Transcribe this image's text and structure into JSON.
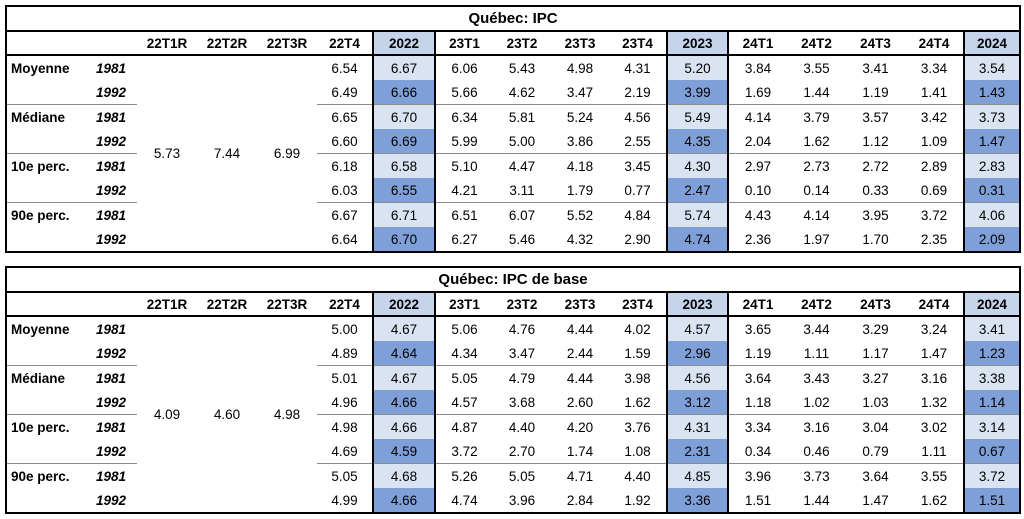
{
  "colors": {
    "border_black": "#000000",
    "group_separator": "#8c8c8c",
    "annual_header_bg": "#c5d4eb",
    "annual_1981_bg": "#dae3f1",
    "annual_1992_bg": "#7f9fd8"
  },
  "column_headers": [
    "",
    "",
    "22T1R",
    "22T2R",
    "22T3R",
    "22T4",
    "2022",
    "23T1",
    "23T2",
    "23T3",
    "23T4",
    "2023",
    "24T1",
    "24T2",
    "24T3",
    "24T4",
    "2024"
  ],
  "annual_columns": [
    "2022",
    "2023",
    "2024"
  ],
  "value_columns": [
    "22T4",
    "2022",
    "23T1",
    "23T2",
    "23T3",
    "23T4",
    "2023",
    "24T1",
    "24T2",
    "24T3",
    "24T4",
    "2024"
  ],
  "tables": [
    {
      "title": "Québec: IPC",
      "revised_estimates": {
        "22T1R": "5.73",
        "22T2R": "7.44",
        "22T3R": "6.99"
      },
      "groups": [
        {
          "label": "Moyenne",
          "rows": [
            {
              "year": "1981",
              "values": [
                "6.54",
                "6.67",
                "6.06",
                "5.43",
                "4.98",
                "4.31",
                "5.20",
                "3.84",
                "3.55",
                "3.41",
                "3.34",
                "3.54"
              ]
            },
            {
              "year": "1992",
              "values": [
                "6.49",
                "6.66",
                "5.66",
                "4.62",
                "3.47",
                "2.19",
                "3.99",
                "1.69",
                "1.44",
                "1.19",
                "1.41",
                "1.43"
              ]
            }
          ]
        },
        {
          "label": "Médiane",
          "rows": [
            {
              "year": "1981",
              "values": [
                "6.65",
                "6.70",
                "6.34",
                "5.81",
                "5.24",
                "4.56",
                "5.49",
                "4.14",
                "3.79",
                "3.57",
                "3.42",
                "3.73"
              ]
            },
            {
              "year": "1992",
              "values": [
                "6.60",
                "6.69",
                "5.99",
                "5.00",
                "3.86",
                "2.55",
                "4.35",
                "2.04",
                "1.62",
                "1.12",
                "1.09",
                "1.47"
              ]
            }
          ]
        },
        {
          "label": "10e perc.",
          "rows": [
            {
              "year": "1981",
              "values": [
                "6.18",
                "6.58",
                "5.10",
                "4.47",
                "4.18",
                "3.45",
                "4.30",
                "2.97",
                "2.73",
                "2.72",
                "2.89",
                "2.83"
              ]
            },
            {
              "year": "1992",
              "values": [
                "6.03",
                "6.55",
                "4.21",
                "3.11",
                "1.79",
                "0.77",
                "2.47",
                "0.10",
                "0.14",
                "0.33",
                "0.69",
                "0.31"
              ]
            }
          ]
        },
        {
          "label": "90e perc.",
          "rows": [
            {
              "year": "1981",
              "values": [
                "6.67",
                "6.71",
                "6.51",
                "6.07",
                "5.52",
                "4.84",
                "5.74",
                "4.43",
                "4.14",
                "3.95",
                "3.72",
                "4.06"
              ]
            },
            {
              "year": "1992",
              "values": [
                "6.64",
                "6.70",
                "6.27",
                "5.46",
                "4.32",
                "2.90",
                "4.74",
                "2.36",
                "1.97",
                "1.70",
                "2.35",
                "2.09"
              ]
            }
          ]
        }
      ]
    },
    {
      "title": "Québec: IPC de base",
      "revised_estimates": {
        "22T1R": "4.09",
        "22T2R": "4.60",
        "22T3R": "4.98"
      },
      "groups": [
        {
          "label": "Moyenne",
          "rows": [
            {
              "year": "1981",
              "values": [
                "5.00",
                "4.67",
                "5.06",
                "4.76",
                "4.44",
                "4.02",
                "4.57",
                "3.65",
                "3.44",
                "3.29",
                "3.24",
                "3.41"
              ]
            },
            {
              "year": "1992",
              "values": [
                "4.89",
                "4.64",
                "4.34",
                "3.47",
                "2.44",
                "1.59",
                "2.96",
                "1.19",
                "1.11",
                "1.17",
                "1.47",
                "1.23"
              ]
            }
          ]
        },
        {
          "label": "Médiane",
          "rows": [
            {
              "year": "1981",
              "values": [
                "5.01",
                "4.67",
                "5.05",
                "4.79",
                "4.44",
                "3.98",
                "4.56",
                "3.64",
                "3.43",
                "3.27",
                "3.16",
                "3.38"
              ]
            },
            {
              "year": "1992",
              "values": [
                "4.96",
                "4.66",
                "4.57",
                "3.68",
                "2.60",
                "1.62",
                "3.12",
                "1.18",
                "1.02",
                "1.03",
                "1.32",
                "1.14"
              ]
            }
          ]
        },
        {
          "label": "10e perc.",
          "rows": [
            {
              "year": "1981",
              "values": [
                "4.98",
                "4.66",
                "4.87",
                "4.40",
                "4.20",
                "3.76",
                "4.31",
                "3.34",
                "3.16",
                "3.04",
                "3.02",
                "3.14"
              ]
            },
            {
              "year": "1992",
              "values": [
                "4.69",
                "4.59",
                "3.72",
                "2.70",
                "1.74",
                "1.08",
                "2.31",
                "0.34",
                "0.46",
                "0.79",
                "1.11",
                "0.67"
              ]
            }
          ]
        },
        {
          "label": "90e perc.",
          "rows": [
            {
              "year": "1981",
              "values": [
                "5.05",
                "4.68",
                "5.26",
                "5.05",
                "4.71",
                "4.40",
                "4.85",
                "3.96",
                "3.73",
                "3.64",
                "3.55",
                "3.72"
              ]
            },
            {
              "year": "1992",
              "values": [
                "4.99",
                "4.66",
                "4.74",
                "3.96",
                "2.84",
                "1.92",
                "3.36",
                "1.51",
                "1.44",
                "1.47",
                "1.62",
                "1.51"
              ]
            }
          ]
        }
      ]
    }
  ]
}
